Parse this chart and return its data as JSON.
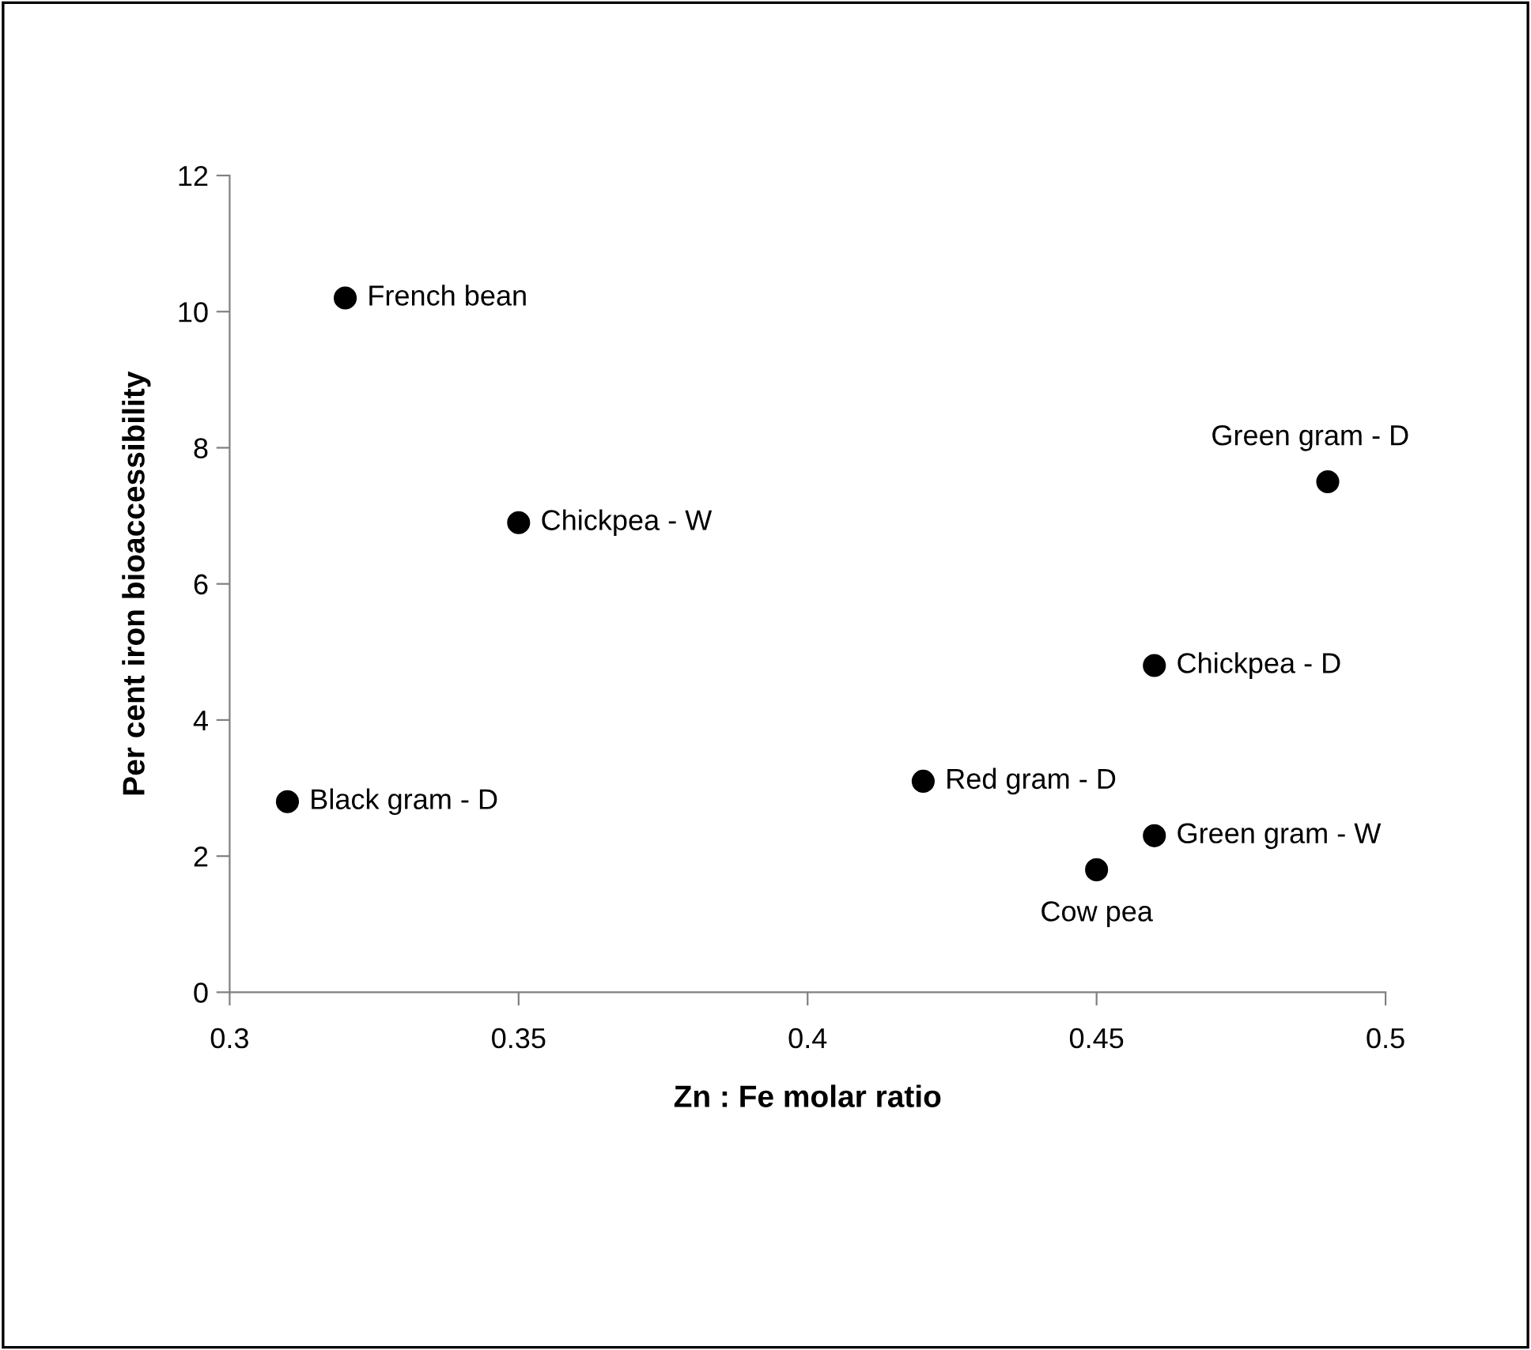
{
  "chart_data": {
    "type": "scatter",
    "xlabel": "Zn : Fe molar ratio",
    "ylabel": "Per cent iron bioaccessibility",
    "x": [
      0.32,
      0.35,
      0.31,
      0.49,
      0.46,
      0.42,
      0.46,
      0.45
    ],
    "values": [
      10.2,
      6.9,
      2.8,
      7.5,
      4.8,
      3.1,
      2.3,
      1.8
    ],
    "color": "#000000",
    "marker": "circle",
    "xlim": [
      0.3,
      0.5
    ],
    "xticks": [
      0.3,
      0.35,
      0.4,
      0.45,
      0.5
    ],
    "ylim": [
      0,
      12
    ],
    "yticks": [
      0,
      2,
      4,
      6,
      8,
      10,
      12
    ],
    "grid": false,
    "annotations": [
      {
        "text": "French bean",
        "x": 0.32,
        "y": 10.2
      },
      {
        "text": "Chickpea - W",
        "x": 0.35,
        "y": 6.9
      },
      {
        "text": "Black gram - D",
        "x": 0.31,
        "y": 2.8
      },
      {
        "text": "Green gram - D",
        "x": 0.49,
        "y": 7.5
      },
      {
        "text": "Chickpea - D",
        "x": 0.46,
        "y": 4.8
      },
      {
        "text": "Red gram - D",
        "x": 0.42,
        "y": 3.1
      },
      {
        "text": "Green gram - W",
        "x": 0.46,
        "y": 2.3
      },
      {
        "text": "Cow pea",
        "x": 0.45,
        "y": 1.8
      }
    ]
  }
}
